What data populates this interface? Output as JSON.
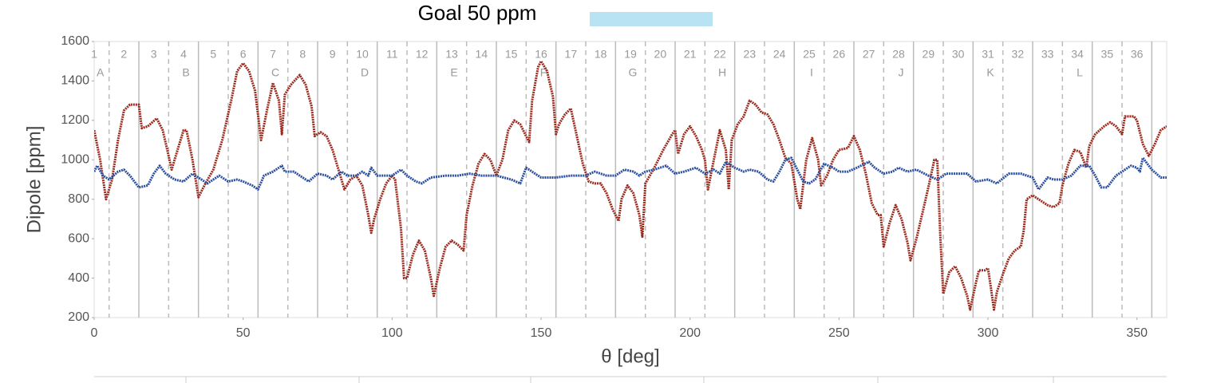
{
  "chart_data": {
    "type": "line",
    "legend": {
      "label": "Goal 50 ppm",
      "color": "#b8e3f3"
    },
    "xlabel": "θ [deg]",
    "ylabel": "Dipole [ppm]",
    "xlim": [
      0,
      360
    ],
    "ylim": [
      200,
      1600
    ],
    "xticks": [
      0,
      50,
      100,
      150,
      200,
      250,
      300,
      350
    ],
    "yticks": [
      200,
      400,
      600,
      800,
      1000,
      1200,
      1400,
      1600
    ],
    "segments": [
      "1",
      "2",
      "3",
      "4",
      "5",
      "6",
      "7",
      "8",
      "9",
      "10",
      "11",
      "12",
      "13",
      "14",
      "15",
      "16",
      "17",
      "18",
      "19",
      "20",
      "21",
      "22",
      "23",
      "24",
      "25",
      "26",
      "27",
      "28",
      "29",
      "30",
      "31",
      "32",
      "33",
      "34",
      "35",
      "36"
    ],
    "zones": [
      "A",
      "B",
      "C",
      "D",
      "E",
      "F",
      "G",
      "H",
      "I",
      "J",
      "K",
      "L"
    ],
    "dashed_lines": [
      5,
      25,
      45,
      65,
      85,
      105,
      125,
      145,
      165,
      185,
      205,
      225,
      245,
      265,
      285,
      305,
      325,
      345
    ],
    "solid_lines": [
      15,
      35,
      55,
      75,
      95,
      115,
      135,
      155,
      175,
      195,
      215,
      235,
      255,
      275,
      295,
      315,
      335,
      355
    ],
    "series": [
      {
        "color": "#9b2a1e",
        "x": [
          0,
          2,
          4,
          6,
          8,
          10,
          12,
          15,
          16,
          18,
          21,
          23,
          25,
          26,
          28,
          30,
          31,
          33,
          35,
          37,
          40,
          43,
          46,
          48,
          50,
          52,
          54,
          55,
          56,
          58,
          60,
          62,
          63,
          64,
          66,
          69,
          71,
          73,
          74,
          76,
          78,
          80,
          83,
          84,
          86,
          88,
          90,
          92,
          93,
          94,
          96,
          98,
          100,
          101,
          103,
          104,
          105,
          107,
          109,
          111,
          113,
          114,
          116,
          118,
          120,
          122,
          124,
          125,
          127,
          129,
          131,
          133,
          135,
          137,
          139,
          141,
          143,
          145,
          146,
          147,
          149,
          150,
          152,
          154,
          155,
          156,
          158,
          160,
          162,
          164,
          166,
          168,
          170,
          172,
          174,
          176,
          177,
          179,
          181,
          183,
          184,
          185,
          188,
          191,
          194,
          195,
          196,
          198,
          200,
          202,
          204,
          205,
          206,
          208,
          210,
          212,
          213,
          214,
          216,
          218,
          220,
          222,
          224,
          226,
          228,
          230,
          232,
          234,
          236,
          237,
          239,
          241,
          243,
          244,
          246,
          248,
          250,
          253,
          255,
          257,
          259,
          261,
          263,
          264,
          265,
          267,
          269,
          271,
          273,
          274,
          276,
          278,
          280,
          282,
          283,
          284,
          285,
          287,
          289,
          291,
          293,
          294,
          296,
          297,
          299,
          300,
          301,
          302,
          303,
          305,
          307,
          309,
          311,
          312,
          313,
          315,
          318,
          320,
          322,
          324,
          325,
          327,
          329,
          331,
          333,
          334,
          336,
          339,
          341,
          343,
          345,
          346,
          349,
          350,
          352,
          354,
          356,
          358,
          360
        ],
        "values": [
          1150,
          1000,
          800,
          900,
          1100,
          1250,
          1280,
          1280,
          1160,
          1170,
          1210,
          1150,
          1020,
          950,
          1050,
          1150,
          1150,
          1000,
          810,
          870,
          950,
          1100,
          1300,
          1450,
          1490,
          1450,
          1350,
          1230,
          1100,
          1250,
          1390,
          1300,
          1130,
          1330,
          1380,
          1430,
          1380,
          1270,
          1120,
          1140,
          1120,
          1050,
          900,
          850,
          900,
          920,
          870,
          720,
          630,
          700,
          800,
          880,
          920,
          900,
          650,
          400,
          400,
          520,
          590,
          540,
          400,
          310,
          450,
          560,
          590,
          570,
          540,
          720,
          870,
          980,
          1030,
          1000,
          920,
          1000,
          1150,
          1200,
          1180,
          1120,
          1090,
          1300,
          1470,
          1500,
          1450,
          1320,
          1130,
          1180,
          1230,
          1260,
          1120,
          980,
          890,
          880,
          880,
          830,
          750,
          690,
          800,
          870,
          830,
          720,
          610,
          880,
          960,
          1050,
          1130,
          1150,
          1030,
          1130,
          1170,
          1120,
          1050,
          1000,
          850,
          1000,
          1150,
          1050,
          850,
          1100,
          1180,
          1220,
          1300,
          1280,
          1240,
          1230,
          1180,
          1100,
          1010,
          980,
          800,
          750,
          1000,
          1110,
          1000,
          870,
          920,
          1000,
          1050,
          1060,
          1120,
          1050,
          930,
          780,
          720,
          720,
          560,
          680,
          770,
          700,
          580,
          490,
          600,
          730,
          860,
          1000,
          1000,
          610,
          320,
          430,
          460,
          400,
          310,
          240,
          380,
          440,
          440,
          450,
          350,
          240,
          330,
          420,
          500,
          540,
          560,
          640,
          800,
          820,
          790,
          770,
          760,
          780,
          870,
          980,
          1050,
          1040,
          960,
          1070,
          1130,
          1170,
          1190,
          1170,
          1130,
          1220,
          1220,
          1200,
          1080,
          1020,
          1080,
          1150,
          1170
        ]
      },
      {
        "color": "#2a4fa0",
        "x": [
          0,
          1,
          3,
          5,
          8,
          10,
          12,
          15,
          18,
          20,
          22,
          24,
          27,
          30,
          33,
          35,
          38,
          40,
          42,
          45,
          48,
          50,
          53,
          55,
          57,
          60,
          63,
          64,
          67,
          70,
          72,
          75,
          78,
          80,
          83,
          85,
          88,
          90,
          92,
          93,
          95,
          100,
          103,
          105,
          108,
          110,
          113,
          118,
          122,
          126,
          130,
          135,
          140,
          143,
          145,
          148,
          150,
          155,
          160,
          165,
          168,
          172,
          175,
          178,
          181,
          183,
          185,
          188,
          192,
          195,
          198,
          202,
          205,
          208,
          210,
          212,
          215,
          218,
          220,
          223,
          226,
          228,
          230,
          232,
          234,
          236,
          238,
          240,
          242,
          245,
          248,
          250,
          253,
          256,
          260,
          262,
          265,
          268,
          270,
          273,
          276,
          280,
          283,
          286,
          290,
          293,
          296,
          300,
          303,
          307,
          311,
          315,
          317,
          320,
          322,
          325,
          328,
          331,
          334,
          336,
          338,
          340,
          343,
          346,
          348,
          350,
          351,
          352,
          355,
          358,
          360
        ],
        "values": [
          940,
          970,
          920,
          900,
          940,
          950,
          920,
          860,
          870,
          930,
          970,
          930,
          900,
          890,
          930,
          910,
          880,
          900,
          920,
          890,
          900,
          890,
          870,
          850,
          920,
          940,
          970,
          940,
          940,
          910,
          890,
          930,
          920,
          900,
          940,
          920,
          920,
          940,
          920,
          960,
          920,
          920,
          950,
          920,
          890,
          880,
          910,
          920,
          920,
          930,
          920,
          920,
          900,
          880,
          960,
          930,
          910,
          910,
          920,
          920,
          940,
          920,
          920,
          950,
          940,
          920,
          940,
          950,
          970,
          930,
          940,
          960,
          930,
          950,
          930,
          990,
          960,
          940,
          950,
          940,
          900,
          890,
          940,
          1000,
          1010,
          950,
          890,
          880,
          900,
          980,
          960,
          940,
          940,
          960,
          990,
          960,
          930,
          940,
          960,
          940,
          950,
          920,
          900,
          930,
          930,
          930,
          890,
          900,
          880,
          930,
          930,
          910,
          850,
          910,
          900,
          900,
          920,
          970,
          970,
          920,
          860,
          860,
          920,
          950,
          970,
          960,
          940,
          1010,
          950,
          910,
          910
        ]
      }
    ]
  }
}
